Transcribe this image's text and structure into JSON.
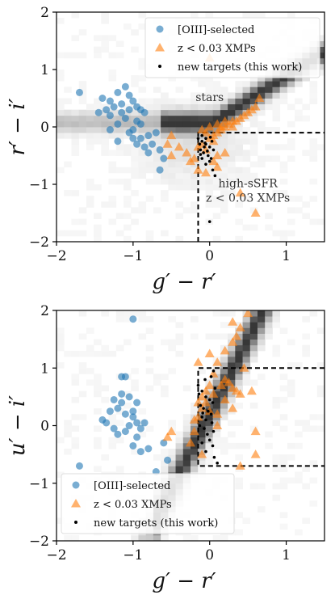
{
  "chart_data": [
    {
      "type": "scatter",
      "id": "top",
      "xlabel": "g′ − r′",
      "ylabel": "r′ − i′",
      "xlim": [
        -2,
        1.5
      ],
      "ylim": [
        -2,
        2
      ],
      "xticks": [
        -2,
        -1,
        0,
        1
      ],
      "yticks": [
        -2,
        -1,
        0,
        1,
        2
      ],
      "xtick_labels": [
        "−2",
        "−1",
        "0",
        "1"
      ],
      "ytick_labels": [
        "−2",
        "−1",
        "0",
        "1",
        "2"
      ],
      "legend_position": "top-right",
      "annotations": [
        {
          "text": "stars",
          "x": 0.0,
          "y": 0.45
        },
        {
          "text": "high-sSFR",
          "x": 0.5,
          "y": -1.05
        },
        {
          "text": "z < 0.03 XMPs",
          "x": 0.5,
          "y": -1.3
        }
      ],
      "selection_box": {
        "x_min": -0.15,
        "y_max": -0.1
      },
      "series": [
        {
          "name": "[OIII]-selected",
          "marker": "circle",
          "color": "#1f77b4",
          "points": [
            [
              -1.7,
              0.6
            ],
            [
              -1.4,
              0.5
            ],
            [
              -1.3,
              0.45
            ],
            [
              -1.2,
              0.6
            ],
            [
              -1.1,
              0.7
            ],
            [
              -1.05,
              0.55
            ],
            [
              -1.15,
              0.4
            ],
            [
              -1.0,
              0.45
            ],
            [
              -0.95,
              0.35
            ],
            [
              -1.25,
              0.35
            ],
            [
              -1.35,
              0.3
            ],
            [
              -1.05,
              0.3
            ],
            [
              -0.9,
              0.3
            ],
            [
              -0.85,
              0.25
            ],
            [
              -1.3,
              0.2
            ],
            [
              -1.1,
              0.15
            ],
            [
              -0.95,
              0.1
            ],
            [
              -1.0,
              -0.05
            ],
            [
              -0.9,
              0.05
            ],
            [
              -1.2,
              0.05
            ],
            [
              -1.3,
              -0.05
            ],
            [
              -1.05,
              -0.1
            ],
            [
              -0.8,
              -0.15
            ],
            [
              -0.9,
              -0.2
            ],
            [
              -1.0,
              -0.2
            ],
            [
              -0.75,
              -0.3
            ],
            [
              -0.85,
              -0.35
            ],
            [
              -0.65,
              -0.4
            ],
            [
              -0.8,
              -0.45
            ],
            [
              -0.6,
              -0.55
            ],
            [
              -0.65,
              -0.75
            ],
            [
              -1.45,
              0.25
            ],
            [
              -1.2,
              -0.25
            ],
            [
              -0.7,
              -0.1
            ],
            [
              -0.95,
              -0.3
            ],
            [
              -1.15,
              0.25
            ]
          ]
        },
        {
          "name": "z < 0.03 XMPs",
          "marker": "triangle",
          "color": "#ff7f0e",
          "points": [
            [
              0.0,
              1.2
            ],
            [
              -0.5,
              -0.5
            ],
            [
              -0.3,
              -0.45
            ],
            [
              -0.25,
              -0.6
            ],
            [
              -0.2,
              -0.55
            ],
            [
              -0.15,
              -0.35
            ],
            [
              -0.1,
              -0.3
            ],
            [
              -0.05,
              -0.4
            ],
            [
              0.0,
              -0.2
            ],
            [
              0.05,
              -0.15
            ],
            [
              0.1,
              -0.1
            ],
            [
              0.15,
              -0.05
            ],
            [
              0.2,
              0.0
            ],
            [
              0.25,
              0.05
            ],
            [
              0.3,
              0.1
            ],
            [
              0.35,
              0.1
            ],
            [
              0.4,
              0.15
            ],
            [
              0.45,
              0.2
            ],
            [
              0.5,
              0.25
            ],
            [
              0.55,
              0.3
            ],
            [
              0.6,
              0.35
            ],
            [
              0.65,
              0.5
            ],
            [
              -0.1,
              -0.05
            ],
            [
              0.0,
              0.0
            ],
            [
              0.1,
              0.05
            ],
            [
              0.2,
              0.1
            ],
            [
              0.05,
              -0.25
            ],
            [
              -0.05,
              -0.1
            ],
            [
              0.15,
              0.0
            ],
            [
              0.3,
              0.0
            ],
            [
              -0.5,
              -0.15
            ],
            [
              -0.55,
              -0.3
            ],
            [
              0.1,
              -0.5
            ],
            [
              0.2,
              -0.45
            ],
            [
              -0.15,
              -0.75
            ],
            [
              -0.05,
              -0.8
            ],
            [
              0.1,
              -0.7
            ],
            [
              0.6,
              -1.5
            ],
            [
              0.4,
              -1.15
            ],
            [
              0.05,
              -0.6
            ],
            [
              -0.4,
              -0.35
            ]
          ]
        },
        {
          "name": "new targets (this work)",
          "marker": "dot",
          "color": "#000000",
          "points": [
            [
              -0.15,
              -0.2
            ],
            [
              -0.1,
              -0.25
            ],
            [
              -0.05,
              -0.3
            ],
            [
              0.0,
              -0.35
            ],
            [
              -0.12,
              -0.4
            ],
            [
              -0.08,
              -0.45
            ],
            [
              -0.02,
              -0.5
            ],
            [
              0.02,
              -0.55
            ],
            [
              -0.1,
              -0.15
            ],
            [
              -0.05,
              -0.2
            ],
            [
              0.03,
              -0.25
            ],
            [
              -0.13,
              -0.3
            ],
            [
              -0.07,
              -0.35
            ],
            [
              0.05,
              -0.4
            ],
            [
              -0.03,
              -0.42
            ],
            [
              0.0,
              -0.6
            ],
            [
              0.04,
              -0.75
            ],
            [
              0.07,
              -0.85
            ],
            [
              -0.05,
              -0.65
            ],
            [
              -0.1,
              -0.55
            ],
            [
              0.0,
              -1.65
            ],
            [
              -0.06,
              -0.28
            ],
            [
              0.01,
              -0.18
            ],
            [
              -0.12,
              -0.48
            ]
          ]
        }
      ]
    },
    {
      "type": "scatter",
      "id": "bottom",
      "xlabel": "g′ − r′",
      "ylabel": "u′ − i′",
      "xlim": [
        -2,
        1.5
      ],
      "ylim": [
        -2,
        2
      ],
      "xticks": [
        -2,
        -1,
        0,
        1
      ],
      "yticks": [
        -2,
        -1,
        0,
        1,
        2
      ],
      "xtick_labels": [
        "−2",
        "−1",
        "0",
        "1"
      ],
      "ytick_labels": [
        "−2",
        "−1",
        "0",
        "1",
        "2"
      ],
      "legend_position": "bottom-left",
      "selection_box": {
        "x_min": -0.15,
        "y_min": -0.7,
        "y_max": 1.0
      },
      "series": [
        {
          "name": "[OIII]-selected",
          "marker": "circle",
          "color": "#1f77b4",
          "points": [
            [
              -1.0,
              1.85
            ],
            [
              -1.15,
              0.85
            ],
            [
              -1.1,
              0.85
            ],
            [
              -1.25,
              0.45
            ],
            [
              -1.15,
              0.4
            ],
            [
              -1.05,
              0.5
            ],
            [
              -0.95,
              0.4
            ],
            [
              -1.2,
              0.3
            ],
            [
              -1.3,
              0.25
            ],
            [
              -1.1,
              0.2
            ],
            [
              -1.0,
              0.15
            ],
            [
              -1.4,
              0.1
            ],
            [
              -1.35,
              0.05
            ],
            [
              -1.25,
              -0.05
            ],
            [
              -1.05,
              0.0
            ],
            [
              -0.95,
              0.05
            ],
            [
              -0.85,
              0.05
            ],
            [
              -0.9,
              -0.05
            ],
            [
              -1.1,
              -0.1
            ],
            [
              -1.2,
              -0.15
            ],
            [
              -0.95,
              -0.2
            ],
            [
              -1.0,
              -0.35
            ],
            [
              -0.8,
              -0.4
            ],
            [
              -0.9,
              -0.45
            ],
            [
              -0.6,
              -0.3
            ],
            [
              -0.55,
              -0.6
            ],
            [
              -0.7,
              -0.8
            ],
            [
              -1.7,
              -0.7
            ],
            [
              -1.15,
              0.55
            ],
            [
              -1.0,
              0.25
            ]
          ]
        },
        {
          "name": "z < 0.03 XMPs",
          "marker": "triangle",
          "color": "#ff7f0e",
          "points": [
            [
              0.5,
              1.95
            ],
            [
              0.4,
              1.7
            ],
            [
              0.35,
              1.55
            ],
            [
              0.3,
              1.45
            ],
            [
              0.2,
              1.3
            ],
            [
              0.1,
              1.1
            ],
            [
              0.05,
              0.9
            ],
            [
              0.0,
              0.7
            ],
            [
              -0.05,
              0.6
            ],
            [
              -0.1,
              0.5
            ],
            [
              -0.15,
              0.4
            ],
            [
              0.15,
              0.7
            ],
            [
              0.2,
              0.8
            ],
            [
              0.25,
              0.75
            ],
            [
              0.3,
              0.65
            ],
            [
              0.35,
              0.6
            ],
            [
              0.4,
              0.55
            ],
            [
              0.45,
              1.0
            ],
            [
              0.05,
              0.55
            ],
            [
              -0.05,
              0.4
            ],
            [
              -0.1,
              0.3
            ],
            [
              -0.15,
              0.15
            ],
            [
              -0.2,
              0.1
            ],
            [
              0.1,
              0.2
            ],
            [
              0.0,
              1.25
            ],
            [
              -0.5,
              -0.1
            ],
            [
              -0.55,
              -0.2
            ],
            [
              -0.25,
              -0.3
            ],
            [
              -0.1,
              -0.5
            ],
            [
              0.4,
              -0.7
            ],
            [
              0.6,
              -0.5
            ],
            [
              0.6,
              -0.1
            ],
            [
              0.3,
              0.3
            ],
            [
              -0.15,
              1.1
            ],
            [
              0.55,
              0.6
            ],
            [
              0.0,
              0.25
            ],
            [
              0.1,
              0.0
            ],
            [
              -0.2,
              -0.1
            ],
            [
              0.2,
              0.45
            ],
            [
              0.3,
              1.8
            ]
          ]
        },
        {
          "name": "new targets (this work)",
          "marker": "dot",
          "color": "#000000",
          "points": [
            [
              -0.15,
              0.7
            ],
            [
              -0.1,
              0.6
            ],
            [
              -0.05,
              0.5
            ],
            [
              0.0,
              0.45
            ],
            [
              -0.12,
              0.35
            ],
            [
              -0.08,
              0.3
            ],
            [
              -0.02,
              0.25
            ],
            [
              0.02,
              0.2
            ],
            [
              -0.1,
              0.15
            ],
            [
              -0.05,
              0.1
            ],
            [
              0.03,
              0.05
            ],
            [
              -0.13,
              0.0
            ],
            [
              -0.07,
              -0.05
            ],
            [
              0.05,
              -0.1
            ],
            [
              -0.03,
              -0.15
            ],
            [
              0.0,
              -0.25
            ],
            [
              0.04,
              -0.35
            ],
            [
              -0.1,
              -0.3
            ],
            [
              0.02,
              0.85
            ],
            [
              0.05,
              0.95
            ],
            [
              -0.06,
              0.8
            ],
            [
              0.07,
              0.65
            ],
            [
              -0.14,
              0.55
            ],
            [
              0.06,
              -0.55
            ],
            [
              0.1,
              -0.65
            ],
            [
              -0.05,
              -0.45
            ],
            [
              0.04,
              0.4
            ],
            [
              -0.09,
              0.22
            ]
          ]
        }
      ]
    }
  ]
}
